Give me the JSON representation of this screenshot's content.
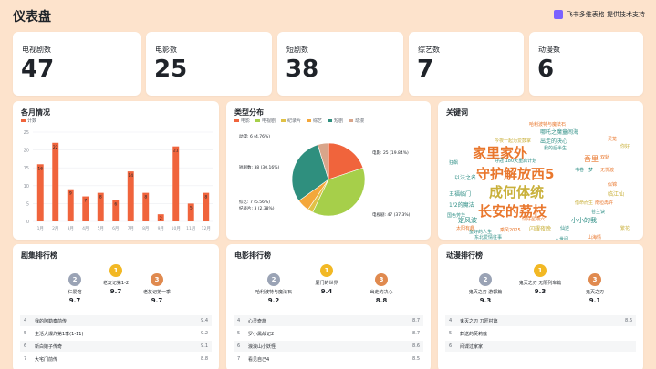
{
  "header": {
    "title": "仪表盘",
    "brand": "飞书多维表格 提供技术支持"
  },
  "kpis": [
    {
      "label": "电视剧数",
      "value": "47"
    },
    {
      "label": "电影数",
      "value": "25"
    },
    {
      "label": "短剧数",
      "value": "38"
    },
    {
      "label": "综艺数",
      "value": "7"
    },
    {
      "label": "动漫数",
      "value": "6"
    }
  ],
  "monthly": {
    "title": "各月情况",
    "legend": "计数"
  },
  "type_dist": {
    "title": "类型分布",
    "legend": [
      "电影",
      "电视剧",
      "纪录片",
      "综艺",
      "短剧",
      "动漫"
    ],
    "labels": {
      "donghua": "动漫: 6 (4.76%)",
      "duanju": "短剧数: 38 (30.16%)",
      "zongyi": "综艺: 7 (5.56%)",
      "jilupian": "纪录片: 3 (2.38%)",
      "dianying": "电影: 25 (19.84%)",
      "dianshiju": "电视剧: 47 (37.3%)"
    }
  },
  "keywords": {
    "title": "关键词",
    "words": [
      {
        "t": "家里家外",
        "c": "#e9772d"
      },
      {
        "t": "守护解放西5",
        "c": "#e9772d"
      },
      {
        "t": "成何体统",
        "c": "#c9b03a"
      },
      {
        "t": "长安的荔枝",
        "c": "#e9772d"
      },
      {
        "t": "五福临门",
        "c": "#2f8f86"
      },
      {
        "t": "1/2的魔法",
        "c": "#2f8f86"
      },
      {
        "t": "以法之名",
        "c": "#2f8f86"
      },
      {
        "t": "哪吒之魔童闹海",
        "c": "#2f8f86"
      },
      {
        "t": "出走的决心",
        "c": "#2f8f86"
      },
      {
        "t": "吾里",
        "c": "#e9772d"
      },
      {
        "t": "定风波",
        "c": "#2f8f86"
      },
      {
        "t": "小小的我",
        "c": "#2f8f86"
      },
      {
        "t": "闪耀夜晚",
        "c": "#c9b03a"
      },
      {
        "t": "夺冠 180天重启计划",
        "c": "#2f8f86"
      },
      {
        "t": "哈利波特与魔法石",
        "c": "#e9772d"
      },
      {
        "t": "今夜一起为爱鼓掌",
        "c": "#c9b03a"
      },
      {
        "t": "无忧渡",
        "c": "#e9772d"
      },
      {
        "t": "书卷一梦",
        "c": "#2f8f86"
      },
      {
        "t": "似锦",
        "c": "#e9772d"
      },
      {
        "t": "蛮好的人生",
        "c": "#2f8f86"
      },
      {
        "t": "国色芳华",
        "c": "#2f8f86"
      },
      {
        "t": "临江仙",
        "c": "#c9b03a"
      },
      {
        "t": "太阳有趣",
        "c": "#e9772d"
      },
      {
        "t": "南垣再许",
        "c": "#e9772d"
      },
      {
        "t": "苍兰诀",
        "c": "#2f8f86"
      },
      {
        "t": "我的后半生",
        "c": "#2f8f86"
      },
      {
        "t": "双轨",
        "c": "#e9772d"
      },
      {
        "t": "借命而生",
        "c": "#c9b03a"
      },
      {
        "t": "你好星期六",
        "c": "#e9772d"
      },
      {
        "t": "乘风2025",
        "c": "#e9772d"
      },
      {
        "t": "仙逆",
        "c": "#2f8f86"
      },
      {
        "t": "东北爱情往事",
        "c": "#2f8f86"
      },
      {
        "t": "你好",
        "c": "#c9b03a"
      },
      {
        "t": "灵笼",
        "c": "#e9772d"
      },
      {
        "t": "狂飙",
        "c": "#2f8f86"
      },
      {
        "t": "繁花",
        "c": "#c9b03a"
      },
      {
        "t": "人世间",
        "c": "#2f8f86"
      },
      {
        "t": "山海情",
        "c": "#e9772d"
      }
    ]
  },
  "tv_rank": {
    "title": "剧集排行榜",
    "podium": [
      {
        "rank": "2",
        "name": "仁爱馆",
        "score": "9.7"
      },
      {
        "rank": "1",
        "name": "老友记第1-2",
        "score": "9.7"
      },
      {
        "rank": "3",
        "name": "老友记第一季",
        "score": "9.7"
      }
    ],
    "rows": [
      {
        "n": "4",
        "t": "我的阿勒泰前传",
        "s": "9.4"
      },
      {
        "n": "5",
        "t": "生活大爆炸第1季(1-11)",
        "s": "9.2"
      },
      {
        "n": "6",
        "t": "新白娘子传奇",
        "s": "9.1"
      },
      {
        "n": "7",
        "t": "大宅门前传",
        "s": "8.8"
      }
    ]
  },
  "movie_rank": {
    "title": "电影排行榜",
    "podium": [
      {
        "rank": "2",
        "name": "哈利波特与魔法石",
        "score": "9.2"
      },
      {
        "rank": "1",
        "name": "厦门的世界",
        "score": "9.4"
      },
      {
        "rank": "3",
        "name": "出走的决心",
        "score": "8.8"
      }
    ],
    "rows": [
      {
        "n": "4",
        "t": "心灵奇旅",
        "s": "8.7"
      },
      {
        "n": "5",
        "t": "罗小黑战记2",
        "s": "8.7"
      },
      {
        "n": "6",
        "t": "浪浪山小妖怪",
        "s": "8.6"
      },
      {
        "n": "7",
        "t": "看见自己4",
        "s": "8.5"
      }
    ]
  },
  "anime_rank": {
    "title": "动漫排行榜",
    "podium": [
      {
        "rank": "2",
        "name": "鬼灭之刃 游郭篇",
        "score": "9.3"
      },
      {
        "rank": "1",
        "name": "鬼灭之刃 无限列车篇",
        "score": "9.3"
      },
      {
        "rank": "3",
        "name": "鬼灭之刃",
        "score": "9.1"
      }
    ],
    "rows": [
      {
        "n": "4",
        "t": "鬼灭之刃 刀匠村篇",
        "s": "8.6"
      },
      {
        "n": "5",
        "t": "葬送的芙莉莲",
        "s": ""
      },
      {
        "n": "6",
        "t": "间谍过家家",
        "s": ""
      }
    ]
  },
  "chart_data": [
    {
      "type": "bar",
      "title": "各月情况",
      "categories": [
        "1月",
        "2月",
        "3月",
        "4月",
        "5月",
        "6月",
        "7月",
        "8月",
        "9月",
        "10月",
        "11月",
        "12月"
      ],
      "series": [
        {
          "name": "计数",
          "values": [
            16,
            22,
            9,
            7,
            8,
            6,
            14,
            8,
            2,
            21,
            5,
            8
          ]
        }
      ],
      "ylim": [
        0,
        25
      ],
      "yticks": [
        "0",
        "5",
        "10",
        "15",
        "20",
        "25"
      ],
      "grid": true,
      "legend": "top-left",
      "color": "#f0643c"
    },
    {
      "type": "pie",
      "title": "类型分布",
      "slices": [
        {
          "name": "电影",
          "value": 25,
          "color": "#f0643c"
        },
        {
          "name": "电视剧",
          "value": 47,
          "color": "#a6cf4a"
        },
        {
          "name": "纪录片",
          "value": 3,
          "color": "#e0c146"
        },
        {
          "name": "综艺",
          "value": 7,
          "color": "#f4a73a"
        },
        {
          "name": "短剧",
          "value": 38,
          "color": "#2f8f7e"
        },
        {
          "name": "动漫",
          "value": 6,
          "color": "#d9a58a"
        }
      ]
    }
  ]
}
